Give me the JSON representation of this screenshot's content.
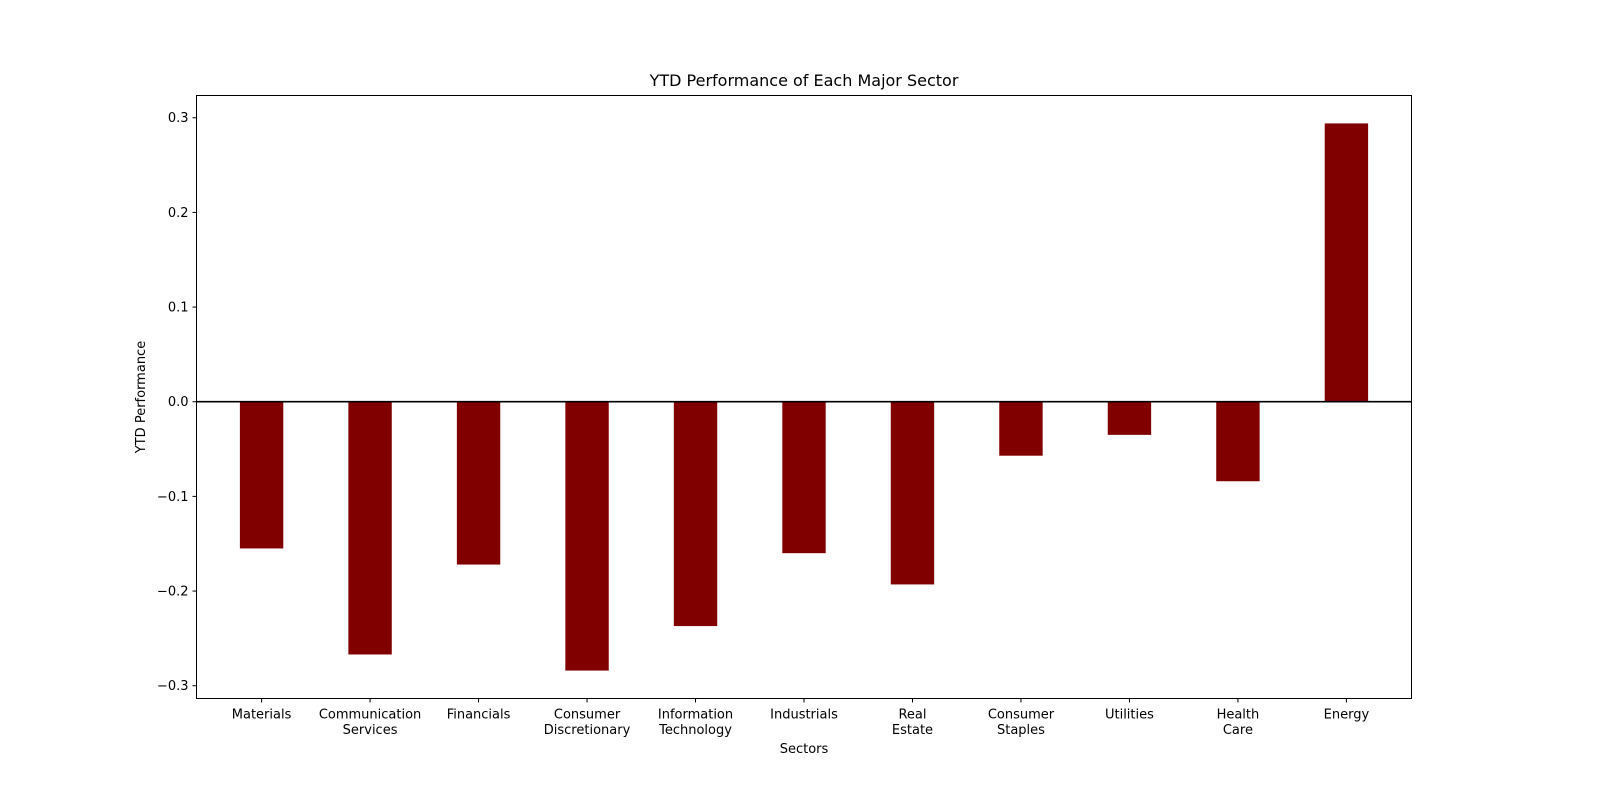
{
  "chart_data": {
    "type": "bar",
    "title": "YTD Performance of Each Major Sector",
    "xlabel": "Sectors",
    "ylabel": "YTD Performance",
    "categories": [
      [
        "Materials"
      ],
      [
        "Communication",
        "Services"
      ],
      [
        "Financials"
      ],
      [
        "Consumer",
        "Discretionary"
      ],
      [
        "Information",
        "Technology"
      ],
      [
        "Industrials"
      ],
      [
        "Real",
        "Estate"
      ],
      [
        "Consumer",
        "Staples"
      ],
      [
        "Utilities"
      ],
      [
        "Health",
        "Care"
      ],
      [
        "Energy"
      ]
    ],
    "values": [
      -0.155,
      -0.267,
      -0.172,
      -0.284,
      -0.237,
      -0.16,
      -0.193,
      -0.057,
      -0.035,
      -0.084,
      0.294
    ],
    "ylim": [
      -0.3135,
      0.3235
    ],
    "yticks": [
      "-0.3",
      "-0.2",
      "-0.1",
      "0.0",
      "0.1",
      "0.2",
      "0.3"
    ],
    "bar_color": "#800000",
    "zero_line": true,
    "grid": false,
    "legend": "none"
  }
}
